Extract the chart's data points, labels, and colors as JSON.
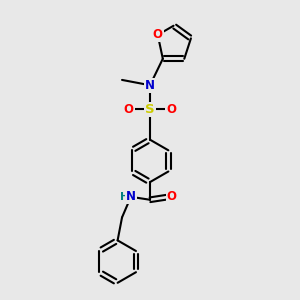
{
  "bg_color": "#e8e8e8",
  "bond_color": "#000000",
  "bond_width": 1.5,
  "colors": {
    "N": "#0000cc",
    "O": "#ff0000",
    "S": "#cccc00",
    "H": "#008080",
    "C": "#000000"
  },
  "font_size": 8.5
}
